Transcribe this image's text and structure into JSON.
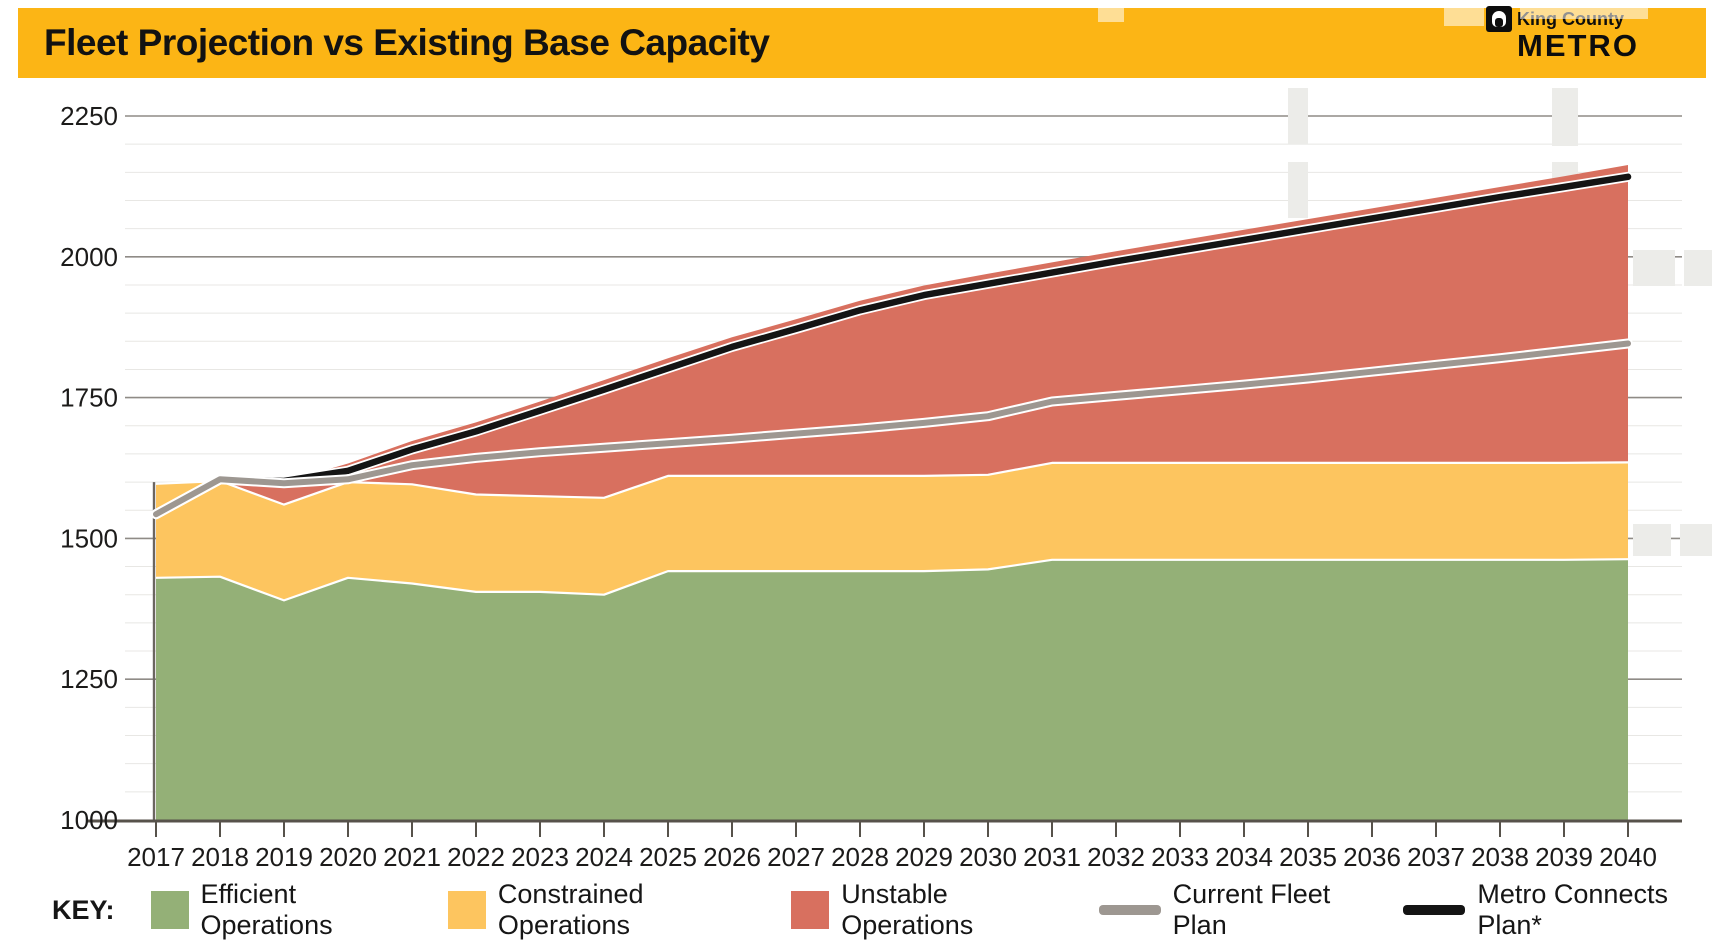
{
  "header": {
    "title": "Fleet Projection vs Existing Base Capacity",
    "logo": {
      "line1": "King County",
      "line2": "METRO"
    }
  },
  "legend": {
    "key_label": "KEY:",
    "items": [
      {
        "label": "Efficient Operations",
        "swatch": "area",
        "color": "#94B077"
      },
      {
        "label": "Constrained Operations",
        "swatch": "area",
        "color": "#FDC55F"
      },
      {
        "label": "Unstable Operations",
        "swatch": "area",
        "color": "#D8705F"
      },
      {
        "label": "Current Fleet Plan",
        "swatch": "line",
        "color": "#9D9791"
      },
      {
        "label": "Metro Connects Plan*",
        "swatch": "line",
        "color": "#141414"
      }
    ]
  },
  "chart_data": {
    "type": "area",
    "title": "Fleet Projection vs Existing Base Capacity",
    "x": [
      2017,
      2018,
      2019,
      2020,
      2021,
      2022,
      2023,
      2024,
      2025,
      2026,
      2027,
      2028,
      2029,
      2030,
      2031,
      2032,
      2033,
      2034,
      2035,
      2036,
      2037,
      2038,
      2039,
      2040
    ],
    "ylim": [
      1000,
      2250
    ],
    "y_major_ticks": [
      2250,
      2000,
      1750,
      1500,
      1250,
      1000
    ],
    "y_minor_step": 50,
    "grid": true,
    "legend_position": "bottom",
    "note": "Area series values are cumulative stack tops (fleet vehicles); lines are overlay projections.",
    "colors": {
      "grid_major": "#8F8B86",
      "grid_minor": "#E8E7E4",
      "axis": "#57524B",
      "background": "#FFFFFF",
      "header": "#FCB515",
      "watermark": "#ECECE9"
    },
    "series": [
      {
        "name": "Efficient Operations",
        "type": "area",
        "color": "#94B077",
        "values": [
          1430,
          1432,
          1390,
          1430,
          1420,
          1405,
          1405,
          1400,
          1442,
          1442,
          1442,
          1442,
          1442,
          1445,
          1462,
          1462,
          1462,
          1462,
          1462,
          1462,
          1462,
          1462,
          1462,
          1463
        ]
      },
      {
        "name": "Constrained Operations",
        "type": "area",
        "color": "#FDC55F",
        "values": [
          1597,
          1602,
          1560,
          1600,
          1596,
          1578,
          1575,
          1572,
          1611,
          1611,
          1611,
          1611,
          1611,
          1613,
          1634,
          1634,
          1634,
          1634,
          1634,
          1634,
          1634,
          1634,
          1634,
          1635
        ]
      },
      {
        "name": "Unstable Operations",
        "type": "area",
        "color": "#D8705F",
        "values": [
          1597,
          1603,
          1600,
          1633,
          1673,
          1706,
          1743,
          1781,
          1820,
          1857,
          1889,
          1922,
          1949,
          1970,
          1990,
          2010,
          2029,
          2048,
          2067,
          2086,
          2105,
          2124,
          2143,
          2163
        ]
      },
      {
        "name": "Current Fleet Plan",
        "type": "line",
        "color": "#9D9791",
        "values": [
          1543,
          1605,
          1598,
          1605,
          1630,
          1643,
          1653,
          1661,
          1669,
          1677,
          1686,
          1695,
          1705,
          1717,
          1743,
          1753,
          1763,
          1773,
          1784,
          1796,
          1808,
          1820,
          1833,
          1846
        ]
      },
      {
        "name": "Metro Connects Plan*",
        "type": "line",
        "color": "#141414",
        "values": [
          1543,
          1605,
          1602,
          1620,
          1658,
          1690,
          1727,
          1764,
          1802,
          1840,
          1872,
          1905,
          1932,
          1952,
          1972,
          1992,
          2011,
          2030,
          2049,
          2068,
          2087,
          2106,
          2124,
          2142
        ]
      }
    ]
  }
}
